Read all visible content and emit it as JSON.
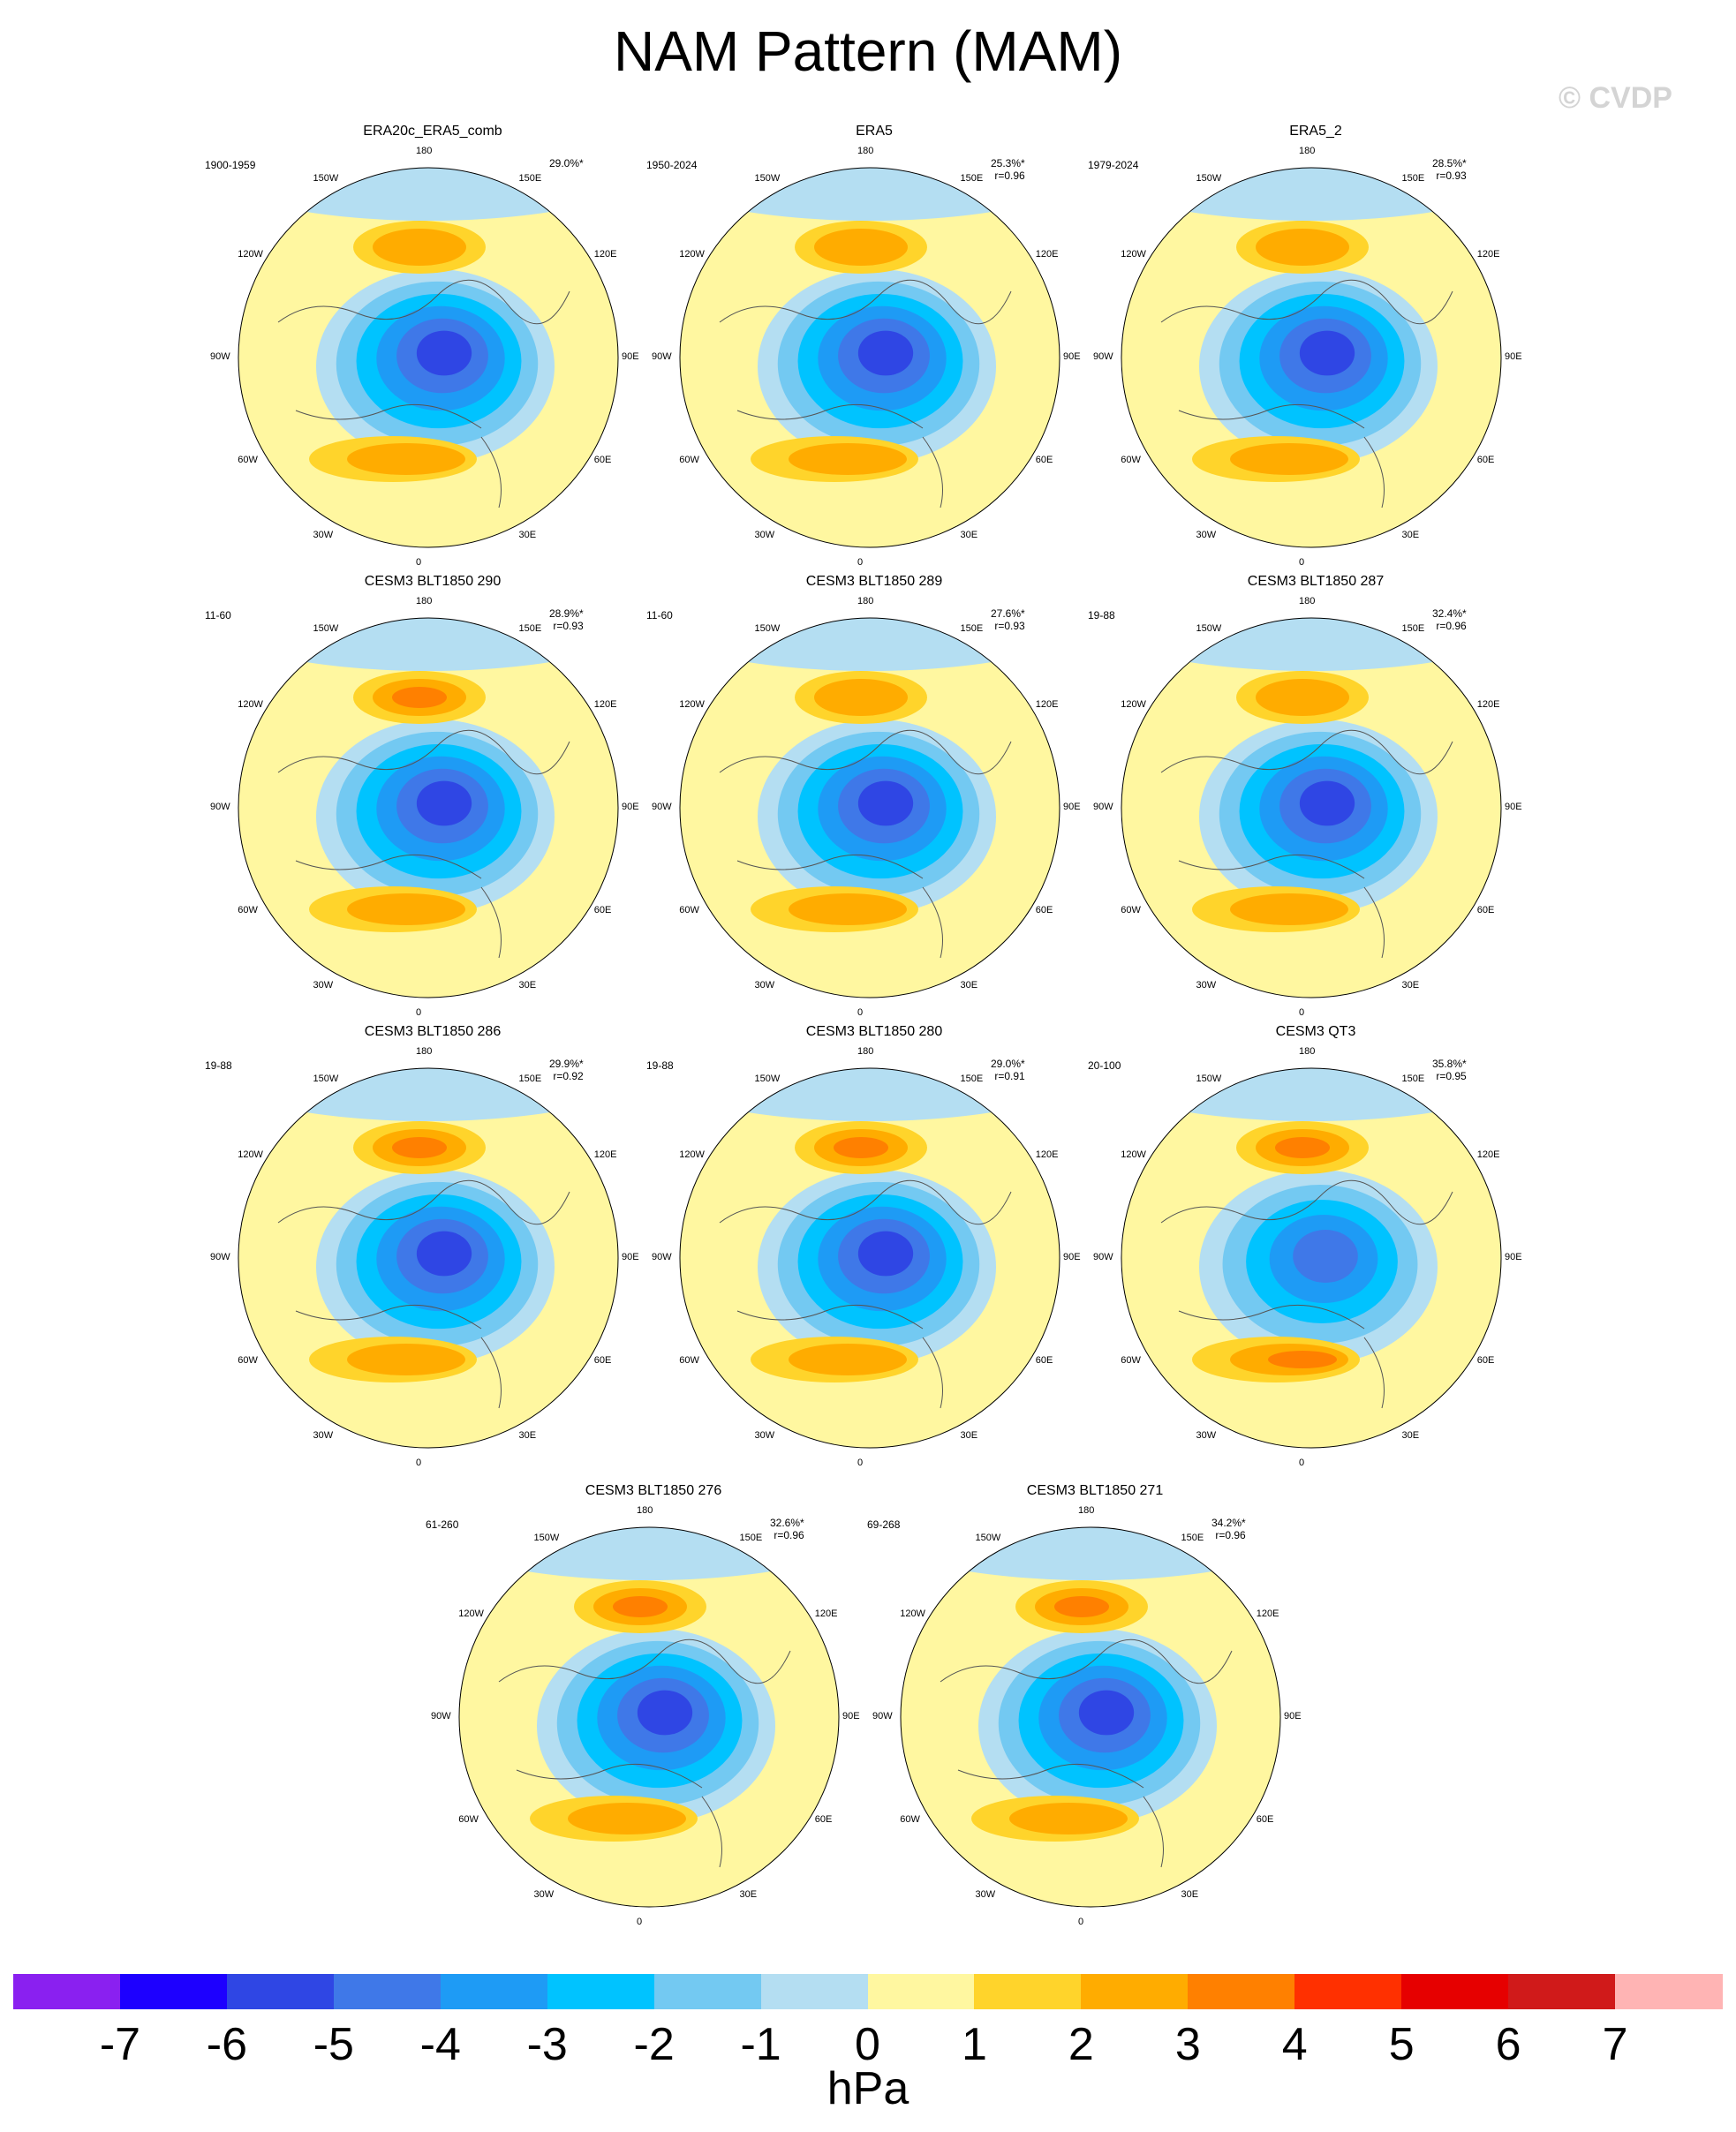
{
  "title": "NAM Pattern (MAM)",
  "watermark": "© CVDP",
  "chart_data": [
    {
      "type": "polar-map",
      "title": "ERA20c_ERA5_comb",
      "period": "1900-1959",
      "variance": "29.0%*",
      "r": "",
      "center_value": -6,
      "pacific_value": 2,
      "atlantic_value": 2
    },
    {
      "type": "polar-map",
      "title": "ERA5",
      "period": "1950-2024",
      "variance": "25.3%*",
      "r": "r=0.96",
      "center_value": -6,
      "pacific_value": 2,
      "atlantic_value": 2
    },
    {
      "type": "polar-map",
      "title": "ERA5_2",
      "period": "1979-2024",
      "variance": "28.5%*",
      "r": "r=0.93",
      "center_value": -6,
      "pacific_value": 2,
      "atlantic_value": 2
    },
    {
      "type": "polar-map",
      "title": "CESM3 BLT1850 290",
      "period": "11-60",
      "variance": "28.9%*",
      "r": "r=0.93",
      "center_value": -6,
      "pacific_value": 3,
      "atlantic_value": 2
    },
    {
      "type": "polar-map",
      "title": "CESM3 BLT1850 289",
      "period": "11-60",
      "variance": "27.6%*",
      "r": "r=0.93",
      "center_value": -6,
      "pacific_value": 2,
      "atlantic_value": 2
    },
    {
      "type": "polar-map",
      "title": "CESM3 BLT1850 287",
      "period": "19-88",
      "variance": "32.4%*",
      "r": "r=0.96",
      "center_value": -6,
      "pacific_value": 2,
      "atlantic_value": 2
    },
    {
      "type": "polar-map",
      "title": "CESM3 BLT1850 286",
      "period": "19-88",
      "variance": "29.9%*",
      "r": "r=0.92",
      "center_value": -6,
      "pacific_value": 3,
      "atlantic_value": 2
    },
    {
      "type": "polar-map",
      "title": "CESM3 BLT1850 280",
      "period": "19-88",
      "variance": "29.0%*",
      "r": "r=0.91",
      "center_value": -6,
      "pacific_value": 3,
      "atlantic_value": 2
    },
    {
      "type": "polar-map",
      "title": "CESM3 QT3",
      "period": "20-100",
      "variance": "35.8%*",
      "r": "r=0.95",
      "center_value": -5,
      "pacific_value": 3,
      "atlantic_value": 3
    },
    {
      "type": "polar-map",
      "title": "CESM3 BLT1850 276",
      "period": "61-260",
      "variance": "32.6%*",
      "r": "r=0.96",
      "center_value": -6,
      "pacific_value": 3,
      "atlantic_value": 2
    },
    {
      "type": "polar-map",
      "title": "CESM3 BLT1850 271",
      "period": "69-268",
      "variance": "34.2%*",
      "r": "r=0.96",
      "center_value": -6,
      "pacific_value": 3,
      "atlantic_value": 2
    }
  ],
  "lon_labels": [
    "180",
    "150E",
    "120E",
    "90E",
    "60E",
    "30E",
    "0",
    "30W",
    "60W",
    "90W",
    "120W",
    "150W"
  ],
  "colorbar": {
    "units": "hPa",
    "ticks": [
      "-7",
      "-6",
      "-5",
      "-4",
      "-3",
      "-2",
      "-1",
      "0",
      "1",
      "2",
      "3",
      "4",
      "5",
      "6",
      "7"
    ],
    "colors": [
      "#8a20f0",
      "#1d00ff",
      "#2f46e4",
      "#3f78e8",
      "#1e9bf5",
      "#00c3ff",
      "#73c9f2",
      "#b4def2",
      "#fff7a0",
      "#ffd42b",
      "#ffac00",
      "#ff8000",
      "#ff3000",
      "#e60000",
      "#d01a1a",
      "#ffb4b4"
    ]
  }
}
